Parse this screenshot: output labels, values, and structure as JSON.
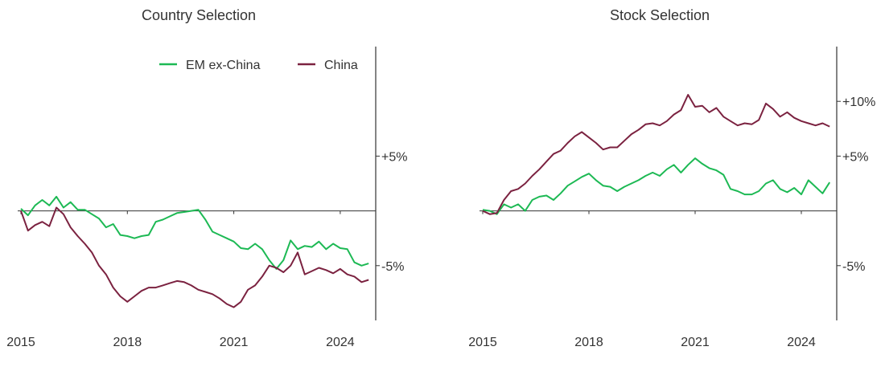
{
  "colors": {
    "em_ex_china": "#1db954",
    "china": "#7b2240",
    "axis": "#333333"
  },
  "legend": {
    "placement": "top-right",
    "items": [
      {
        "name": "EM ex-China",
        "color": "#1db954"
      },
      {
        "name": "China",
        "color": "#7b2240"
      }
    ]
  },
  "chart_data": [
    {
      "type": "line",
      "title": "Country Selection",
      "xlabel": "",
      "ylabel": "",
      "xlim": [
        2015,
        2025
      ],
      "ylim": [
        -10,
        15
      ],
      "x_ticks": [
        {
          "value": 2015,
          "label": "2015"
        },
        {
          "value": 2018,
          "label": "2018"
        },
        {
          "value": 2021,
          "label": "2021"
        },
        {
          "value": 2024,
          "label": "2024"
        }
      ],
      "y_ticks": [
        {
          "value": 5,
          "label": "+5%"
        },
        {
          "value": -5,
          "label": "-5%"
        }
      ],
      "legend": "top-right",
      "series": [
        {
          "name": "EM ex-China",
          "color": "#1db954",
          "points": [
            [
              2015,
              0.2
            ],
            [
              2015.2,
              -0.4
            ],
            [
              2015.4,
              0.5
            ],
            [
              2015.6,
              1.0
            ],
            [
              2015.8,
              0.5
            ],
            [
              2016.0,
              1.3
            ],
            [
              2016.2,
              0.3
            ],
            [
              2016.4,
              0.8
            ],
            [
              2016.6,
              0.1
            ],
            [
              2016.8,
              0.1
            ],
            [
              2017.0,
              -0.3
            ],
            [
              2017.2,
              -0.7
            ],
            [
              2017.4,
              -1.5
            ],
            [
              2017.6,
              -1.2
            ],
            [
              2017.8,
              -2.2
            ],
            [
              2018.0,
              -2.3
            ],
            [
              2018.2,
              -2.5
            ],
            [
              2018.4,
              -2.3
            ],
            [
              2018.6,
              -2.2
            ],
            [
              2018.8,
              -1.0
            ],
            [
              2019.0,
              -0.8
            ],
            [
              2019.2,
              -0.5
            ],
            [
              2019.4,
              -0.2
            ],
            [
              2019.6,
              -0.1
            ],
            [
              2019.8,
              0.0
            ],
            [
              2020.0,
              0.1
            ],
            [
              2020.2,
              -0.8
            ],
            [
              2020.4,
              -1.9
            ],
            [
              2020.6,
              -2.2
            ],
            [
              2020.8,
              -2.5
            ],
            [
              2021.0,
              -2.8
            ],
            [
              2021.2,
              -3.4
            ],
            [
              2021.4,
              -3.5
            ],
            [
              2021.6,
              -3.0
            ],
            [
              2021.8,
              -3.5
            ],
            [
              2022.0,
              -4.5
            ],
            [
              2022.2,
              -5.3
            ],
            [
              2022.4,
              -4.5
            ],
            [
              2022.6,
              -2.7
            ],
            [
              2022.8,
              -3.5
            ],
            [
              2023.0,
              -3.2
            ],
            [
              2023.2,
              -3.3
            ],
            [
              2023.4,
              -2.8
            ],
            [
              2023.6,
              -3.5
            ],
            [
              2023.8,
              -3.0
            ],
            [
              2024.0,
              -3.4
            ],
            [
              2024.2,
              -3.5
            ],
            [
              2024.4,
              -4.7
            ],
            [
              2024.6,
              -5.0
            ],
            [
              2024.8,
              -4.8
            ]
          ]
        },
        {
          "name": "China",
          "color": "#7b2240",
          "points": [
            [
              2015,
              0.0
            ],
            [
              2015.2,
              -1.8
            ],
            [
              2015.4,
              -1.3
            ],
            [
              2015.6,
              -1.0
            ],
            [
              2015.8,
              -1.4
            ],
            [
              2016.0,
              0.3
            ],
            [
              2016.2,
              -0.3
            ],
            [
              2016.4,
              -1.5
            ],
            [
              2016.6,
              -2.3
            ],
            [
              2016.8,
              -3.0
            ],
            [
              2017.0,
              -3.8
            ],
            [
              2017.2,
              -5.0
            ],
            [
              2017.4,
              -5.8
            ],
            [
              2017.6,
              -7.0
            ],
            [
              2017.8,
              -7.8
            ],
            [
              2018.0,
              -8.3
            ],
            [
              2018.2,
              -7.8
            ],
            [
              2018.4,
              -7.3
            ],
            [
              2018.6,
              -7.0
            ],
            [
              2018.8,
              -7.0
            ],
            [
              2019.0,
              -6.8
            ],
            [
              2019.2,
              -6.6
            ],
            [
              2019.4,
              -6.4
            ],
            [
              2019.6,
              -6.5
            ],
            [
              2019.8,
              -6.8
            ],
            [
              2020.0,
              -7.2
            ],
            [
              2020.2,
              -7.4
            ],
            [
              2020.4,
              -7.6
            ],
            [
              2020.6,
              -8.0
            ],
            [
              2020.8,
              -8.5
            ],
            [
              2021.0,
              -8.8
            ],
            [
              2021.2,
              -8.3
            ],
            [
              2021.4,
              -7.2
            ],
            [
              2021.6,
              -6.8
            ],
            [
              2021.8,
              -6.0
            ],
            [
              2022.0,
              -5.0
            ],
            [
              2022.2,
              -5.2
            ],
            [
              2022.4,
              -5.6
            ],
            [
              2022.6,
              -5.0
            ],
            [
              2022.8,
              -3.8
            ],
            [
              2023.0,
              -5.8
            ],
            [
              2023.2,
              -5.5
            ],
            [
              2023.4,
              -5.2
            ],
            [
              2023.6,
              -5.4
            ],
            [
              2023.8,
              -5.7
            ],
            [
              2024.0,
              -5.3
            ],
            [
              2024.2,
              -5.8
            ],
            [
              2024.4,
              -6.0
            ],
            [
              2024.6,
              -6.5
            ],
            [
              2024.8,
              -6.3
            ]
          ]
        }
      ]
    },
    {
      "type": "line",
      "title": "Stock Selection",
      "xlabel": "",
      "ylabel": "",
      "xlim": [
        2015,
        2025
      ],
      "ylim": [
        -10,
        15
      ],
      "x_ticks": [
        {
          "value": 2015,
          "label": "2015"
        },
        {
          "value": 2018,
          "label": "2018"
        },
        {
          "value": 2021,
          "label": "2021"
        },
        {
          "value": 2024,
          "label": "2024"
        }
      ],
      "y_ticks": [
        {
          "value": 10,
          "label": "+10%"
        },
        {
          "value": 5,
          "label": "+5%"
        },
        {
          "value": -5,
          "label": "-5%"
        }
      ],
      "series": [
        {
          "name": "EM ex-China",
          "color": "#1db954",
          "points": [
            [
              2015,
              0.1
            ],
            [
              2015.2,
              0.0
            ],
            [
              2015.4,
              -0.3
            ],
            [
              2015.6,
              0.6
            ],
            [
              2015.8,
              0.3
            ],
            [
              2016.0,
              0.6
            ],
            [
              2016.2,
              0.0
            ],
            [
              2016.4,
              1.0
            ],
            [
              2016.6,
              1.3
            ],
            [
              2016.8,
              1.4
            ],
            [
              2017.0,
              1.0
            ],
            [
              2017.2,
              1.6
            ],
            [
              2017.4,
              2.3
            ],
            [
              2017.6,
              2.7
            ],
            [
              2017.8,
              3.1
            ],
            [
              2018.0,
              3.4
            ],
            [
              2018.2,
              2.8
            ],
            [
              2018.4,
              2.3
            ],
            [
              2018.6,
              2.2
            ],
            [
              2018.8,
              1.8
            ],
            [
              2019.0,
              2.2
            ],
            [
              2019.2,
              2.5
            ],
            [
              2019.4,
              2.8
            ],
            [
              2019.6,
              3.2
            ],
            [
              2019.8,
              3.5
            ],
            [
              2020.0,
              3.2
            ],
            [
              2020.2,
              3.8
            ],
            [
              2020.4,
              4.2
            ],
            [
              2020.6,
              3.5
            ],
            [
              2020.8,
              4.2
            ],
            [
              2021.0,
              4.8
            ],
            [
              2021.2,
              4.3
            ],
            [
              2021.4,
              3.9
            ],
            [
              2021.6,
              3.7
            ],
            [
              2021.8,
              3.3
            ],
            [
              2022.0,
              2.0
            ],
            [
              2022.2,
              1.8
            ],
            [
              2022.4,
              1.5
            ],
            [
              2022.6,
              1.5
            ],
            [
              2022.8,
              1.8
            ],
            [
              2023.0,
              2.5
            ],
            [
              2023.2,
              2.8
            ],
            [
              2023.4,
              2.0
            ],
            [
              2023.6,
              1.7
            ],
            [
              2023.8,
              2.1
            ],
            [
              2024.0,
              1.5
            ],
            [
              2024.2,
              2.8
            ],
            [
              2024.4,
              2.2
            ],
            [
              2024.6,
              1.6
            ],
            [
              2024.8,
              2.6
            ]
          ]
        },
        {
          "name": "China",
          "color": "#7b2240",
          "points": [
            [
              2015,
              0.0
            ],
            [
              2015.2,
              -0.3
            ],
            [
              2015.4,
              -0.2
            ],
            [
              2015.6,
              1.0
            ],
            [
              2015.8,
              1.8
            ],
            [
              2016.0,
              2.0
            ],
            [
              2016.2,
              2.5
            ],
            [
              2016.4,
              3.2
            ],
            [
              2016.6,
              3.8
            ],
            [
              2016.8,
              4.5
            ],
            [
              2017.0,
              5.2
            ],
            [
              2017.2,
              5.5
            ],
            [
              2017.4,
              6.2
            ],
            [
              2017.6,
              6.8
            ],
            [
              2017.8,
              7.2
            ],
            [
              2018.0,
              6.7
            ],
            [
              2018.2,
              6.2
            ],
            [
              2018.4,
              5.6
            ],
            [
              2018.6,
              5.8
            ],
            [
              2018.8,
              5.8
            ],
            [
              2019.0,
              6.4
            ],
            [
              2019.2,
              7.0
            ],
            [
              2019.4,
              7.4
            ],
            [
              2019.6,
              7.9
            ],
            [
              2019.8,
              8.0
            ],
            [
              2020.0,
              7.8
            ],
            [
              2020.2,
              8.2
            ],
            [
              2020.4,
              8.8
            ],
            [
              2020.6,
              9.2
            ],
            [
              2020.8,
              10.6
            ],
            [
              2021.0,
              9.5
            ],
            [
              2021.2,
              9.6
            ],
            [
              2021.4,
              9.0
            ],
            [
              2021.6,
              9.4
            ],
            [
              2021.8,
              8.6
            ],
            [
              2022.0,
              8.2
            ],
            [
              2022.2,
              7.8
            ],
            [
              2022.4,
              8.0
            ],
            [
              2022.6,
              7.9
            ],
            [
              2022.8,
              8.3
            ],
            [
              2023.0,
              9.8
            ],
            [
              2023.2,
              9.3
            ],
            [
              2023.4,
              8.6
            ],
            [
              2023.6,
              9.0
            ],
            [
              2023.8,
              8.5
            ],
            [
              2024.0,
              8.2
            ],
            [
              2024.2,
              8.0
            ],
            [
              2024.4,
              7.8
            ],
            [
              2024.6,
              8.0
            ],
            [
              2024.8,
              7.7
            ]
          ]
        }
      ]
    }
  ]
}
